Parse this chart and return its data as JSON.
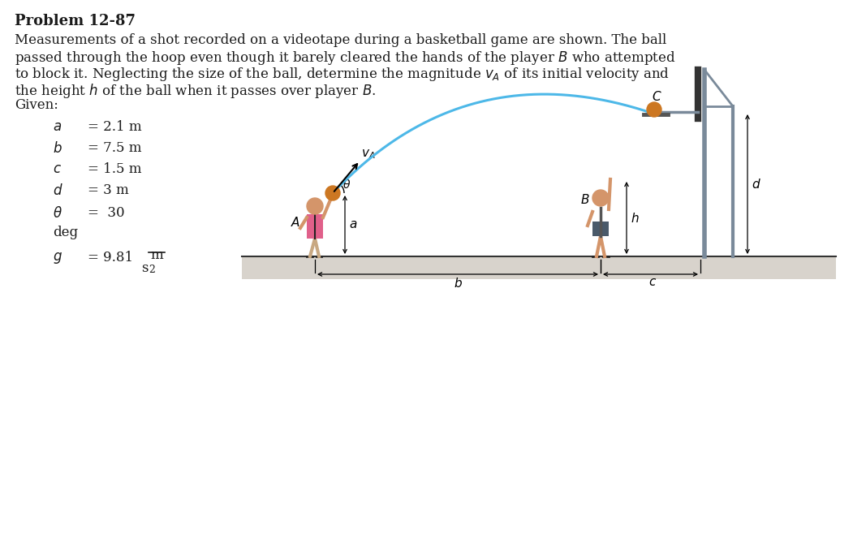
{
  "title": "Problem 12-87",
  "desc1": "Measurements of a shot recorded on a videotape during a basketball game are shown. The ball",
  "desc2": "passed through the hoop even though it barely cleared the hands of the player $B$ who attempted",
  "desc3": "to block it. Neglecting the size of the ball, determine the magnitude $v_A$ of its initial velocity and",
  "desc4": "the height $h$ of the ball when it passes over player $B$.",
  "given": "Given:",
  "bg_color": "#ffffff",
  "text_color": "#1a1a1a",
  "ball_color": "#cc7722",
  "traj_color": "#4db8e8",
  "floor_color": "#d8d3cc",
  "skin_color": "#d4956a",
  "shirt_color": "#e0608a",
  "shorts_color": "#4a5a6a",
  "structure_color": "#7a8a9a",
  "dark_color": "#333333"
}
